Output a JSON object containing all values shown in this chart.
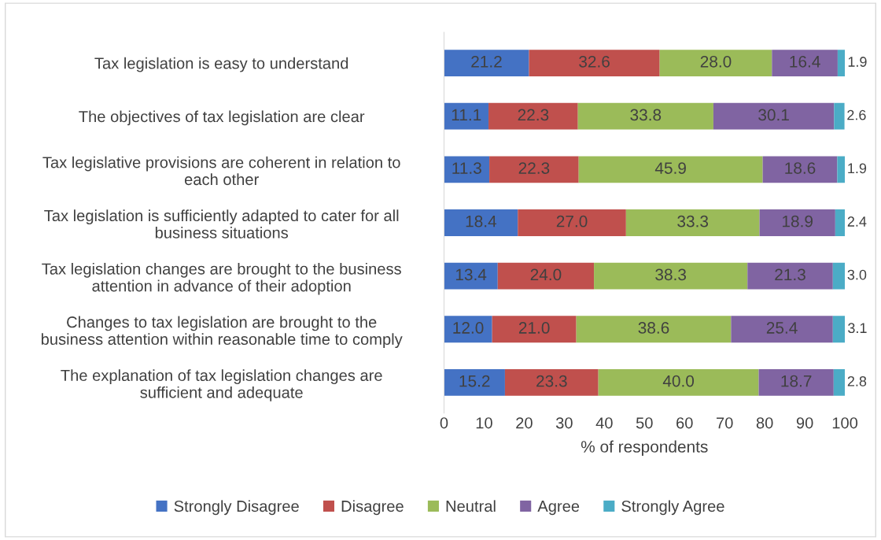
{
  "chart_data": {
    "type": "bar",
    "orientation": "horizontal",
    "stacked": true,
    "categories": [
      "Tax legislation is easy to understand",
      "The objectives of tax legislation are clear",
      "Tax legislative provisions are coherent in relation to\neach other",
      "Tax legislation is sufficiently adapted to cater for all\nbusiness situations",
      "Tax legislation changes are brought to the business\nattention in advance of their adoption",
      "Changes to tax legislation are brought to the\nbusiness attention within reasonable time to comply",
      "The explanation of tax legislation changes are\nsufficient and adequate"
    ],
    "series": [
      {
        "name": "Strongly Disagree",
        "color": "#4472c4",
        "values": [
          21.2,
          11.1,
          11.3,
          18.4,
          13.4,
          12.0,
          15.2
        ],
        "value_labels": [
          "21.2",
          "11.1",
          "11.3",
          "18.4",
          "13.4",
          "12.0",
          "15.2"
        ]
      },
      {
        "name": "Disagree",
        "color": "#c0504d",
        "values": [
          32.6,
          22.3,
          22.3,
          27.0,
          24.0,
          21.0,
          23.3
        ],
        "value_labels": [
          "32.6",
          "22.3",
          "22.3",
          "27.0",
          "24.0",
          "21.0",
          "23.3"
        ]
      },
      {
        "name": "Neutral",
        "color": "#9bbb59",
        "values": [
          28.0,
          33.8,
          45.9,
          33.3,
          38.3,
          38.6,
          40.0
        ],
        "value_labels": [
          "28.0",
          "33.8",
          "45.9",
          "33.3",
          "38.3",
          "38.6",
          "40.0"
        ]
      },
      {
        "name": "Agree",
        "color": "#8064a2",
        "values": [
          16.4,
          30.1,
          18.6,
          18.9,
          21.3,
          25.4,
          18.7
        ],
        "value_labels": [
          "16.4",
          "30.1",
          "18.6",
          "18.9",
          "21.3",
          "25.4",
          "18.7"
        ]
      },
      {
        "name": "Strongly Agree",
        "color": "#4bacc6",
        "values": [
          1.9,
          2.6,
          1.9,
          2.4,
          3.0,
          3.1,
          2.8
        ],
        "value_labels": [
          "1.9",
          "2.6",
          "1.9",
          "2.4",
          "3.0",
          "3.1",
          "2.8"
        ]
      }
    ],
    "xlabel": "% of respondents",
    "xlim": [
      0,
      100
    ],
    "xticks": [
      0,
      10,
      20,
      30,
      40,
      50,
      60,
      70,
      80,
      90,
      100
    ],
    "grid": false,
    "legend": "bottom"
  }
}
